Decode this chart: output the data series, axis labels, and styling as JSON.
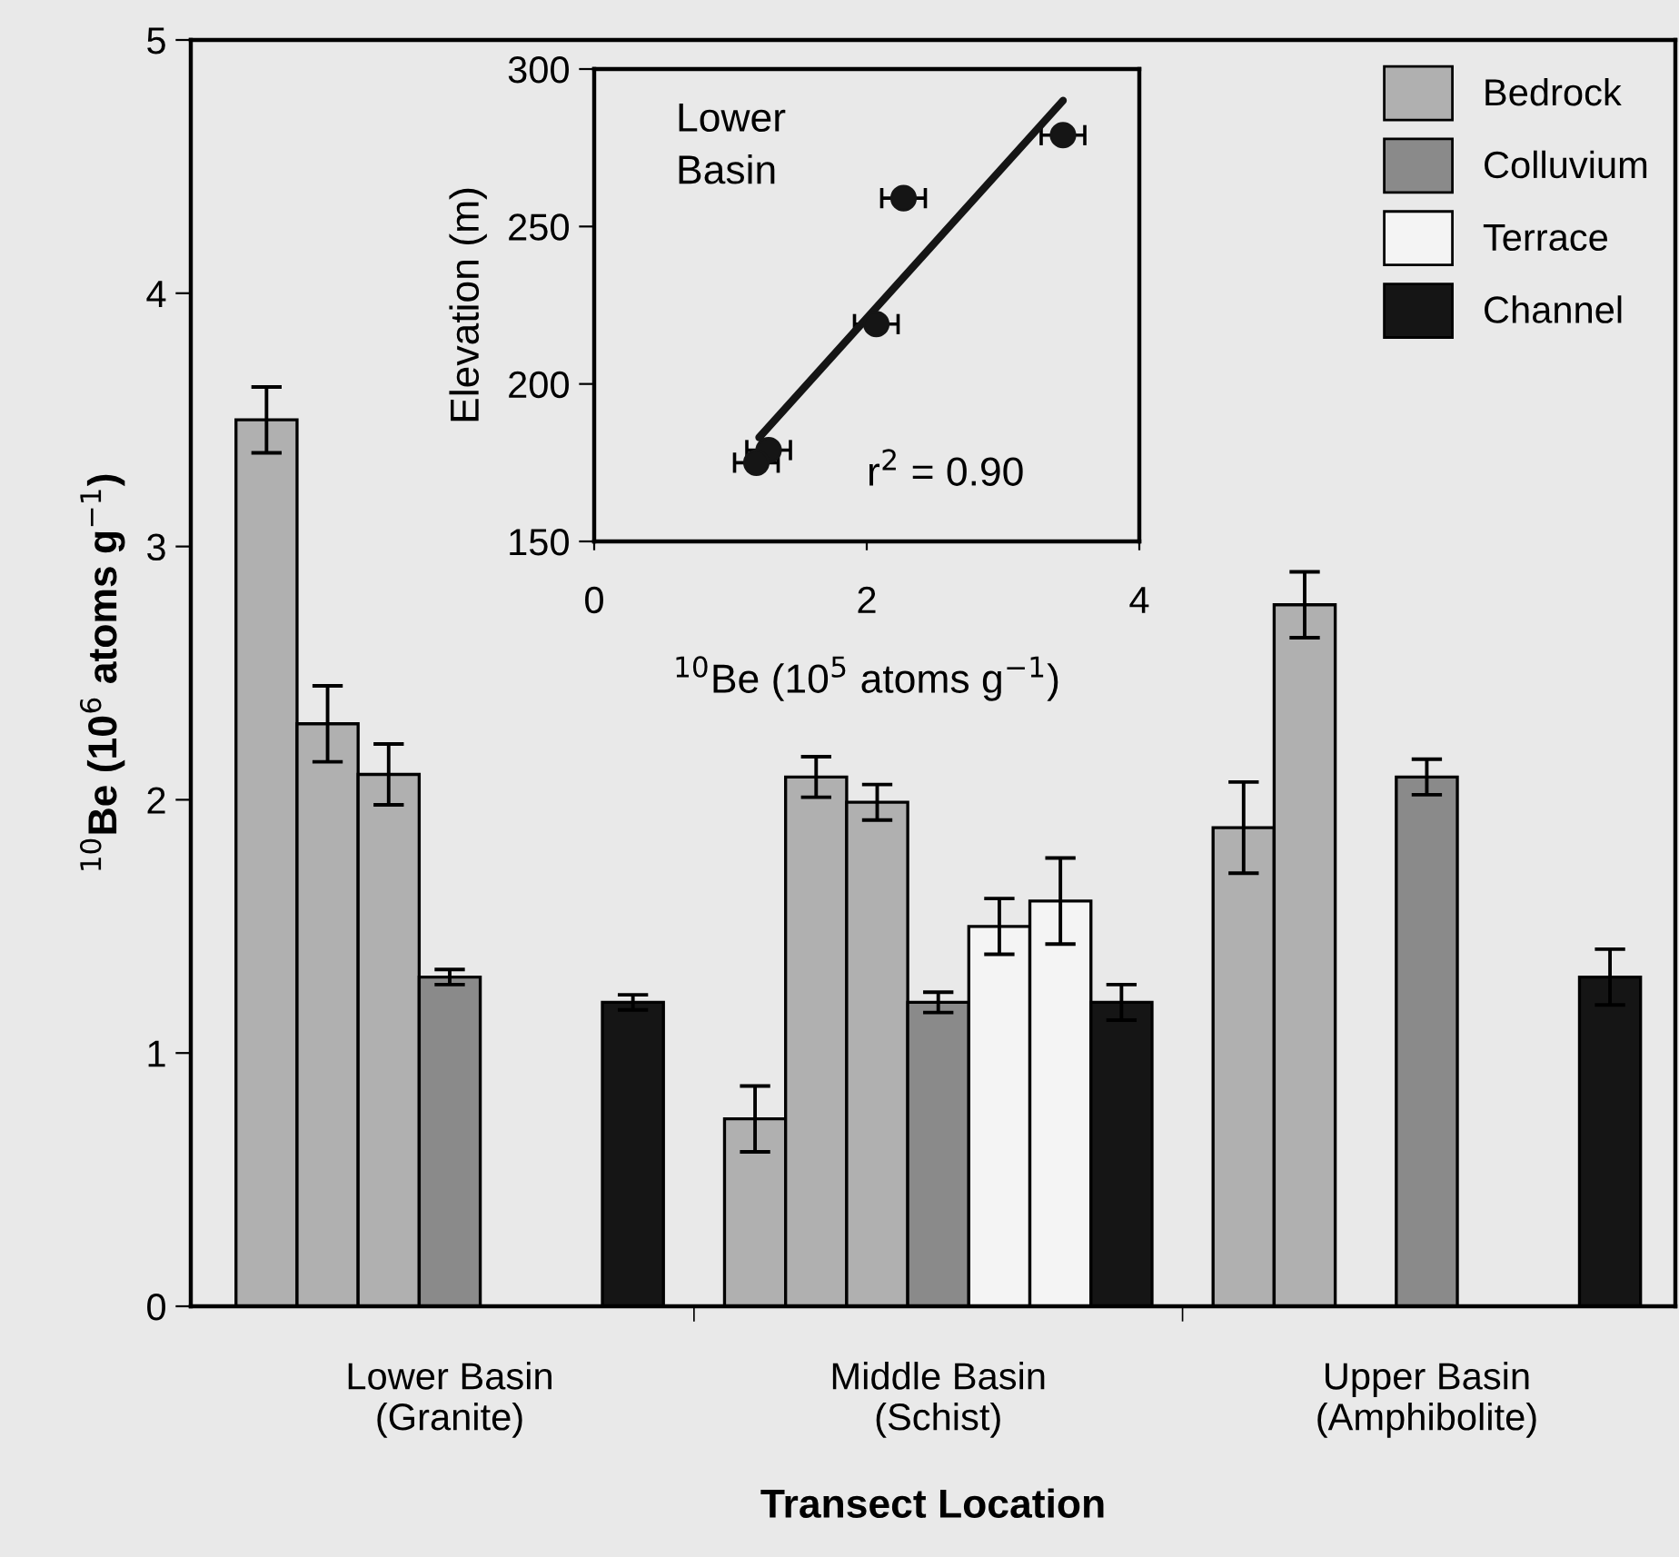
{
  "chart_data": [
    {
      "type": "bar",
      "xlabel": "Transect Location",
      "ylabel": "$^{10}$Be (10$^{6}$ atoms g$^{−1}$)",
      "categories": [
        null,
        null,
        null,
        "Lower Basin\n(Granite)",
        null,
        null,
        null,
        null,
        null,
        null,
        null,
        "Middle Basin\n(Schist)",
        null,
        null,
        null,
        null,
        null,
        null,
        null,
        "Upper Basin\n(Amphibolite)",
        null,
        null,
        null
      ],
      "series": [
        {
          "name": "Bedrock",
          "color": "#b0b0b0",
          "values": [
            3.5,
            2.3,
            2.1,
            null,
            null,
            null,
            null,
            null,
            0.74,
            2.09,
            1.99,
            null,
            null,
            null,
            null,
            null,
            1.89,
            2.77,
            null,
            null,
            null,
            null,
            null
          ],
          "errors": [
            0.13,
            0.15,
            0.12,
            null,
            null,
            null,
            null,
            null,
            0.13,
            0.08,
            0.07,
            null,
            null,
            null,
            null,
            null,
            0.18,
            0.13,
            null,
            null,
            null,
            null,
            null
          ]
        },
        {
          "name": "Colluvium",
          "color": "#8a8a8a",
          "values": [
            null,
            null,
            null,
            1.3,
            null,
            null,
            null,
            null,
            null,
            null,
            null,
            1.2,
            null,
            null,
            null,
            null,
            null,
            null,
            null,
            2.09,
            null,
            null,
            null
          ],
          "errors": [
            null,
            null,
            null,
            0.03,
            null,
            null,
            null,
            null,
            null,
            null,
            null,
            0.04,
            null,
            null,
            null,
            null,
            null,
            null,
            null,
            0.07,
            null,
            null,
            null
          ]
        },
        {
          "name": "Terrace",
          "color": "#f4f4f4",
          "values": [
            null,
            null,
            null,
            null,
            null,
            null,
            null,
            null,
            null,
            null,
            null,
            null,
            1.5,
            1.6,
            null,
            null,
            null,
            null,
            null,
            null,
            null,
            null,
            null
          ],
          "errors": [
            null,
            null,
            null,
            null,
            null,
            null,
            null,
            null,
            null,
            null,
            null,
            null,
            0.11,
            0.17,
            null,
            null,
            null,
            null,
            null,
            null,
            null,
            null,
            null
          ]
        },
        {
          "name": "Channel",
          "color": "#151515",
          "values": [
            null,
            null,
            null,
            null,
            null,
            null,
            1.2,
            null,
            null,
            null,
            null,
            null,
            null,
            null,
            1.2,
            null,
            null,
            null,
            null,
            null,
            null,
            null,
            1.3
          ],
          "errors": [
            null,
            null,
            null,
            null,
            null,
            null,
            0.03,
            null,
            null,
            null,
            null,
            null,
            null,
            null,
            0.07,
            null,
            null,
            null,
            null,
            null,
            null,
            null,
            0.11
          ]
        }
      ],
      "ylim": [
        0,
        5
      ],
      "yticks": [
        0,
        1,
        2,
        3,
        4,
        5
      ],
      "legend": "top right"
    },
    {
      "type": "scatter",
      "xlabel": "$^{10}$Be (10$^{5}$ atoms g$^{−1}$)",
      "ylabel": "Elevation (m)",
      "x": [
        3.44,
        2.27,
        2.07,
        1.28,
        1.19
      ],
      "series": [
        {
          "type": "scatter",
          "marker": "circle",
          "color": "#151515",
          "values": [
            279,
            259,
            219,
            179,
            175
          ],
          "xerrors": [
            0.16,
            0.16,
            0.16,
            0.16,
            0.16
          ]
        },
        {
          "type": "line",
          "color": "#151515",
          "x": [
            1.21,
            3.44
          ],
          "values": [
            183,
            290
          ]
        }
      ],
      "xlim": [
        0,
        4
      ],
      "xticks": [
        0,
        2,
        4
      ],
      "ylim": [
        150,
        300
      ],
      "yticks": [
        150,
        200,
        250,
        300
      ],
      "annotations": [
        "Lower\nBasin",
        "r$^{2}$ = 0.90"
      ]
    }
  ]
}
